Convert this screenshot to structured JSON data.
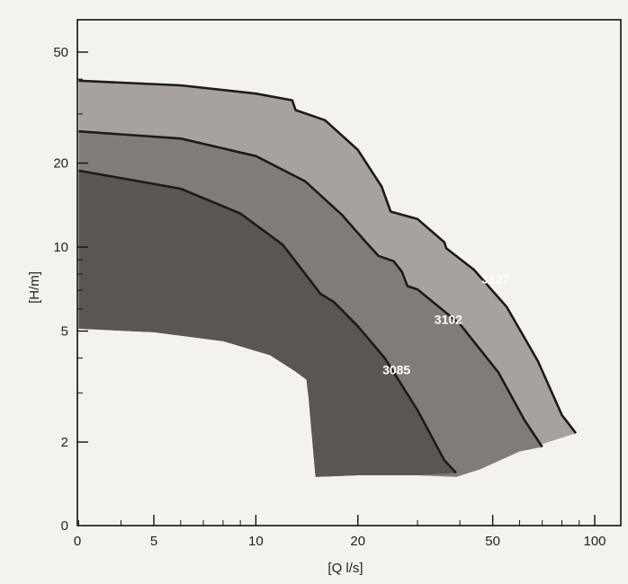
{
  "chart_data": {
    "type": "area",
    "xlabel": "[Q l/s]",
    "ylabel": "[H/m]",
    "x_scale": "log",
    "y_scale": "log",
    "x_ticks": [
      0,
      5,
      10,
      20,
      50,
      100
    ],
    "y_ticks": [
      0,
      2,
      5,
      10,
      20,
      50
    ],
    "xlim": [
      0,
      100
    ],
    "ylim": [
      0,
      50
    ],
    "grid": false,
    "colors": {
      "background": "#f3f2ee",
      "region_3085": "#5c5653",
      "region_3102": "#827c79",
      "region_3127": "#a7a2a0",
      "curve": "#1d1b1a"
    },
    "series": [
      {
        "name": "3085",
        "curve": [
          [
            3.0,
            18.8
          ],
          [
            6,
            16.2
          ],
          [
            9,
            13.2
          ],
          [
            12,
            10.2
          ],
          [
            14,
            8.0
          ],
          [
            15.5,
            6.8
          ],
          [
            17,
            6.35
          ],
          [
            20,
            5.2
          ],
          [
            24,
            4.0
          ],
          [
            30,
            2.6
          ],
          [
            36,
            1.72
          ],
          [
            39,
            1.55
          ]
        ]
      },
      {
        "name": "3102",
        "curve": [
          [
            3.0,
            26.0
          ],
          [
            6,
            24.5
          ],
          [
            10,
            21.2
          ],
          [
            14,
            17.2
          ],
          [
            18,
            13.0
          ],
          [
            21,
            10.5
          ],
          [
            23,
            9.3
          ],
          [
            25.5,
            8.9
          ],
          [
            27,
            8.15
          ],
          [
            28,
            7.25
          ],
          [
            30,
            7.05
          ],
          [
            40,
            5.3
          ],
          [
            52,
            3.55
          ],
          [
            62,
            2.4
          ],
          [
            70,
            1.92
          ]
        ]
      },
      {
        "name": "3127",
        "curve": [
          [
            3.0,
            39.5
          ],
          [
            6,
            38.0
          ],
          [
            10,
            35.5
          ],
          [
            12.8,
            33.6
          ],
          [
            13.1,
            31.0
          ],
          [
            16,
            28.5
          ],
          [
            20,
            22.3
          ],
          [
            23.5,
            16.5
          ],
          [
            25,
            13.4
          ],
          [
            30,
            12.6
          ],
          [
            34,
            11.05
          ],
          [
            36,
            10.4
          ],
          [
            36.5,
            9.9
          ],
          [
            44,
            8.3
          ],
          [
            55,
            6.1
          ],
          [
            68,
            3.9
          ],
          [
            80,
            2.5
          ],
          [
            88,
            2.15
          ]
        ]
      }
    ],
    "region_bounds": {
      "left_edge_x": 3.0,
      "bottom_boundary": [
        [
          3.0,
          5.1
        ],
        [
          5,
          4.95
        ],
        [
          8,
          4.6
        ],
        [
          11,
          4.1
        ],
        [
          13,
          3.6
        ],
        [
          14.1,
          3.35
        ],
        [
          14.3,
          2.9
        ],
        [
          15,
          1.5
        ],
        [
          20,
          1.52
        ],
        [
          30,
          1.52
        ],
        [
          39,
          1.5
        ],
        [
          46,
          1.6
        ],
        [
          60,
          1.85
        ],
        [
          88,
          2.15
        ]
      ]
    },
    "labels": [
      {
        "text": "3085",
        "x": 26,
        "y": 3.5
      },
      {
        "text": "3102",
        "x": 37,
        "y": 5.3
      },
      {
        "text": "3127",
        "x": 51,
        "y": 7.4
      }
    ]
  }
}
